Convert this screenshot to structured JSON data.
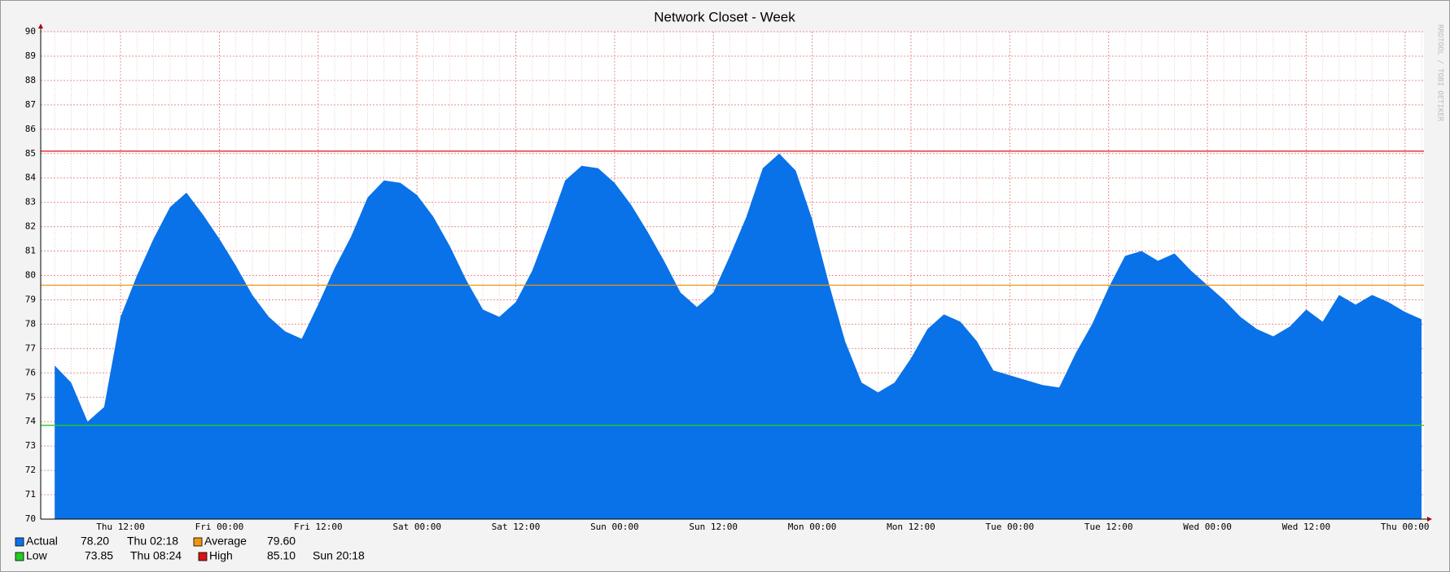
{
  "chart_data": {
    "type": "area",
    "title": "Network Closet - Week",
    "watermark": "RRDTOOL / TOBI OETIKER",
    "categories": [
      null,
      null,
      null,
      null,
      "Thu 12:00",
      null,
      null,
      null,
      null,
      null,
      "Fri 00:00",
      null,
      null,
      null,
      null,
      null,
      "Fri 12:00",
      null,
      null,
      null,
      null,
      null,
      "Sat 00:00",
      null,
      null,
      null,
      null,
      null,
      "Sat 12:00",
      null,
      null,
      null,
      null,
      null,
      "Sun 00:00",
      null,
      null,
      null,
      null,
      null,
      "Sun 12:00",
      null,
      null,
      null,
      null,
      null,
      "Mon 00:00",
      null,
      null,
      null,
      null,
      null,
      "Mon 12:00",
      null,
      null,
      null,
      null,
      null,
      "Tue 00:00",
      null,
      null,
      null,
      null,
      null,
      "Tue 12:00",
      null,
      null,
      null,
      null,
      null,
      "Wed 00:00",
      null,
      null,
      null,
      null,
      null,
      "Wed 12:00",
      null,
      null,
      null,
      null,
      null,
      "Thu 00:00",
      null
    ],
    "series": [
      {
        "name": "Actual",
        "color": "#0a72e8",
        "current": 78.2,
        "current_label": "78.20",
        "current_time": "Thu 02:18",
        "values": [
          76.3,
          75.6,
          74.0,
          74.6,
          78.3,
          80.0,
          81.5,
          82.8,
          83.4,
          82.5,
          81.5,
          80.4,
          79.2,
          78.3,
          77.7,
          77.4,
          78.8,
          80.3,
          81.6,
          83.2,
          83.9,
          83.8,
          83.3,
          82.4,
          81.2,
          79.8,
          78.6,
          78.3,
          78.9,
          80.2,
          82.0,
          83.9,
          84.5,
          84.4,
          83.8,
          82.9,
          81.8,
          80.6,
          79.3,
          78.7,
          79.3,
          80.8,
          82.4,
          84.4,
          85.0,
          84.3,
          82.3,
          79.7,
          77.3,
          75.6,
          75.2,
          75.6,
          76.6,
          77.8,
          78.4,
          78.1,
          77.3,
          76.1,
          75.9,
          75.7,
          75.5,
          75.4,
          76.8,
          78.0,
          79.5,
          80.8,
          81.0,
          80.6,
          80.9,
          80.2,
          79.6,
          79.0,
          78.3,
          77.8,
          77.5,
          77.9,
          78.6,
          78.1,
          79.2,
          78.8,
          79.2,
          78.9,
          78.5,
          78.2
        ]
      }
    ],
    "reference_lines": [
      {
        "name": "Average",
        "color": "#f0960a",
        "value": 79.6,
        "value_label": "79.60"
      },
      {
        "name": "Low",
        "color": "#22cc22",
        "value": 73.85,
        "value_label": "73.85",
        "time": "Thu 08:24"
      },
      {
        "name": "High",
        "color": "#dd1111",
        "value": 85.1,
        "value_label": "85.10",
        "time": "Sun 20:18"
      }
    ],
    "ylim": [
      70,
      90
    ],
    "yticks": [
      70,
      71,
      72,
      73,
      74,
      75,
      76,
      77,
      78,
      79,
      80,
      81,
      82,
      83,
      84,
      85,
      86,
      87,
      88,
      89,
      90
    ],
    "grid": true
  }
}
